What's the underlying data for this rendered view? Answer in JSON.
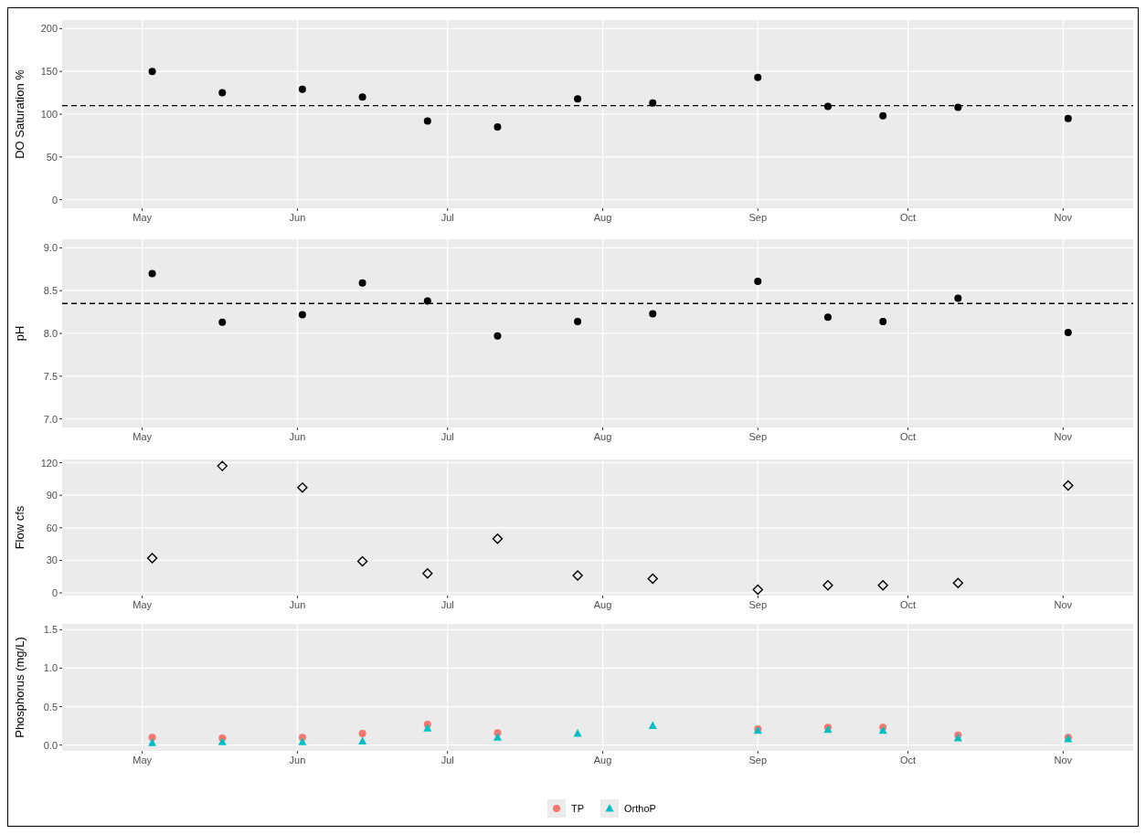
{
  "chart_data": [
    {
      "type": "scatter",
      "ylabel": "DO Saturation %",
      "x": [
        "--05-03",
        "--05-17",
        "--06-02",
        "--06-14",
        "--06-27",
        "--07-11",
        "--07-27",
        "--08-11",
        "--09-01",
        "--09-15",
        "--09-26",
        "--10-11",
        "--11-02"
      ],
      "xlim": [
        "--04-15",
        "--11-15"
      ],
      "xticks": [
        {
          "value": "--05-01",
          "label": "May"
        },
        {
          "value": "--06-01",
          "label": "Jun"
        },
        {
          "value": "--07-01",
          "label": "Jul"
        },
        {
          "value": "--08-01",
          "label": "Aug"
        },
        {
          "value": "--09-01",
          "label": "Sep"
        },
        {
          "value": "--10-01",
          "label": "Oct"
        },
        {
          "value": "--11-01",
          "label": "Nov"
        }
      ],
      "ylim": [
        -10,
        210
      ],
      "yticks": [
        0,
        50,
        100,
        150,
        200
      ],
      "grid": true,
      "marker": "circle",
      "series": [
        {
          "color": "#000000",
          "values": [
            150,
            125,
            129,
            120,
            92,
            85,
            118,
            113,
            143,
            109,
            98,
            108,
            95
          ]
        }
      ],
      "ref_lines": [
        {
          "axis": "y",
          "value": 110,
          "color": "#000000",
          "line_style": "dashed"
        }
      ]
    },
    {
      "type": "scatter",
      "ylabel": "pH",
      "x": [
        "--05-03",
        "--05-17",
        "--06-02",
        "--06-14",
        "--06-27",
        "--07-11",
        "--07-27",
        "--08-11",
        "--09-01",
        "--09-15",
        "--09-26",
        "--10-11",
        "--11-02"
      ],
      "xlim": [
        "--04-15",
        "--11-15"
      ],
      "xticks": [
        {
          "value": "--05-01",
          "label": "May"
        },
        {
          "value": "--06-01",
          "label": "Jun"
        },
        {
          "value": "--07-01",
          "label": "Jul"
        },
        {
          "value": "--08-01",
          "label": "Aug"
        },
        {
          "value": "--09-01",
          "label": "Sep"
        },
        {
          "value": "--10-01",
          "label": "Oct"
        },
        {
          "value": "--11-01",
          "label": "Nov"
        }
      ],
      "ylim": [
        6.9,
        9.1
      ],
      "yticks": [
        {
          "value": 7,
          "label": "7.0"
        },
        {
          "value": 7.5,
          "label": "7.5"
        },
        {
          "value": 8,
          "label": "8.0"
        },
        {
          "value": 8.5,
          "label": "8.5"
        },
        {
          "value": 9,
          "label": "9.0"
        }
      ],
      "grid": true,
      "marker": "circle",
      "series": [
        {
          "color": "#000000",
          "values": [
            8.7,
            8.13,
            8.22,
            8.59,
            8.38,
            7.97,
            8.14,
            8.23,
            8.61,
            8.19,
            8.14,
            8.41,
            8.01
          ]
        }
      ],
      "ref_lines": [
        {
          "axis": "y",
          "value": 8.35,
          "color": "#000000",
          "line_style": "dashed"
        }
      ]
    },
    {
      "type": "scatter",
      "ylabel": "Flow cfs",
      "x": [
        "--05-03",
        "--05-17",
        "--06-02",
        "--06-14",
        "--06-27",
        "--07-11",
        "--07-27",
        "--08-11",
        "--09-01",
        "--09-15",
        "--09-26",
        "--10-11",
        "--11-02"
      ],
      "xlim": [
        "--04-15",
        "--11-15"
      ],
      "xticks": [
        {
          "value": "--05-01",
          "label": "May"
        },
        {
          "value": "--06-01",
          "label": "Jun"
        },
        {
          "value": "--07-01",
          "label": "Jul"
        },
        {
          "value": "--08-01",
          "label": "Aug"
        },
        {
          "value": "--09-01",
          "label": "Sep"
        },
        {
          "value": "--10-01",
          "label": "Oct"
        },
        {
          "value": "--11-01",
          "label": "Nov"
        }
      ],
      "ylim": [
        -2.5,
        123
      ],
      "yticks": [
        0,
        30,
        60,
        90,
        120
      ],
      "grid": true,
      "marker": "diamond",
      "series": [
        {
          "color": "#000000",
          "values": [
            32,
            117,
            97,
            29,
            18,
            50,
            16,
            13,
            3,
            7,
            7,
            9,
            99
          ]
        }
      ]
    },
    {
      "type": "scatter",
      "ylabel": "Phosphorus (mg/L)",
      "x": [
        "--05-03",
        "--05-17",
        "--06-02",
        "--06-14",
        "--06-27",
        "--07-11",
        "--07-27",
        "--08-11",
        "--09-01",
        "--09-15",
        "--09-26",
        "--10-11",
        "--11-02"
      ],
      "xlim": [
        "--04-15",
        "--11-15"
      ],
      "xticks": [
        {
          "value": "--05-01",
          "label": "May"
        },
        {
          "value": "--06-01",
          "label": "Jun"
        },
        {
          "value": "--07-01",
          "label": "Jul"
        },
        {
          "value": "--08-01",
          "label": "Aug"
        },
        {
          "value": "--09-01",
          "label": "Sep"
        },
        {
          "value": "--10-01",
          "label": "Oct"
        },
        {
          "value": "--11-01",
          "label": "Nov"
        }
      ],
      "ylim": [
        -0.075,
        1.575
      ],
      "yticks": [
        {
          "value": 0,
          "label": "0.0"
        },
        {
          "value": 0.5,
          "label": "0.5"
        },
        {
          "value": 1,
          "label": "1.0"
        },
        {
          "value": 1.5,
          "label": "1.5"
        }
      ],
      "grid": true,
      "legend": "bottom",
      "series": [
        {
          "name": "TP",
          "color": "#f8766d",
          "marker": "circle",
          "values": [
            0.1,
            0.09,
            0.1,
            0.15,
            0.27,
            0.16,
            null,
            null,
            0.21,
            0.23,
            0.23,
            0.13,
            0.1
          ]
        },
        {
          "name": "OrthoP",
          "color": "#00bfc4",
          "marker": "triangle",
          "values": [
            0.03,
            0.04,
            0.04,
            0.05,
            0.22,
            0.1,
            0.15,
            0.25,
            0.19,
            0.2,
            0.19,
            0.09,
            0.08
          ]
        }
      ]
    }
  ]
}
